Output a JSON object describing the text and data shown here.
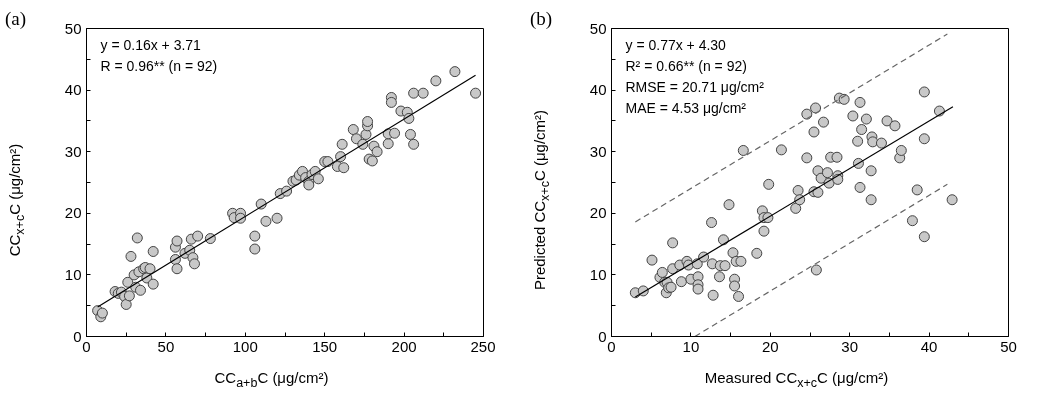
{
  "chart_data": [
    {
      "type": "scatter",
      "title": "(a)",
      "xlabel": "CC$_{a+b}$C (μg/cm²)",
      "ylabel": "CC$_{x+c}$C (μg/cm²)",
      "annotations": [
        "y = 0.16x + 3.71",
        "R = 0.96** (n = 92)"
      ],
      "xlim": [
        0,
        250
      ],
      "ylim": [
        0,
        50
      ],
      "xticks": [
        0,
        {
          "value": 25,
          "label": null
        },
        50,
        {
          "value": 75,
          "label": null
        },
        100,
        {
          "value": 125,
          "label": null
        },
        150,
        {
          "value": 175,
          "label": null
        },
        200,
        {
          "value": 225,
          "label": null
        },
        250
      ],
      "yticks": [
        0,
        {
          "value": 5,
          "label": null
        },
        10,
        {
          "value": 15,
          "label": null
        },
        20,
        {
          "value": 25,
          "label": null
        },
        30,
        {
          "value": 35,
          "label": null
        },
        40,
        {
          "value": 45,
          "label": null
        },
        50
      ],
      "grid": false,
      "series": [
        {
          "marker": "circle",
          "color": "#c8c8c8",
          "x": [
            7,
            9,
            10,
            18,
            20,
            22,
            24,
            25,
            26,
            27,
            28,
            30,
            31,
            32,
            33,
            34,
            36,
            37,
            38,
            40,
            42,
            42,
            56,
            56,
            57,
            57,
            62,
            65,
            66,
            67,
            68,
            70,
            78,
            92,
            93,
            97,
            97,
            106,
            106,
            110,
            113,
            120,
            122,
            126,
            130,
            132,
            134,
            136,
            138,
            140,
            140,
            142,
            144,
            146,
            150,
            152,
            158,
            160,
            161,
            162,
            168,
            170,
            174,
            176,
            177,
            177,
            178,
            180,
            181,
            183,
            190,
            190,
            192,
            192,
            194,
            198,
            202,
            203,
            204,
            206,
            206,
            212,
            220,
            232,
            245
          ],
          "values": [
            4.2,
            3.2,
            3.8,
            7.3,
            7.0,
            7.2,
            6.5,
            5.2,
            8.8,
            6.6,
            13,
            10,
            8,
            16,
            10.5,
            7.5,
            11,
            11.2,
            9.5,
            11,
            13.8,
            8.5,
            12.5,
            14.5,
            15.5,
            11,
            13.5,
            14,
            15.8,
            12.8,
            11.8,
            16.3,
            15.9,
            20,
            19.3,
            20,
            19.2,
            16.3,
            14.2,
            21.5,
            18.7,
            19.2,
            23.2,
            23.6,
            25.2,
            25.4,
            26.2,
            26.8,
            25.8,
            25.2,
            24.6,
            26.3,
            26.8,
            25.6,
            28.4,
            28.4,
            27.6,
            29.2,
            31.2,
            27.4,
            33.6,
            32.1,
            31.2,
            32.8,
            34.2,
            34.9,
            28.8,
            28.5,
            30.9,
            30.0,
            31.3,
            32.9,
            38.8,
            38.0,
            33.0,
            36.6,
            36.4,
            35.4,
            32.8,
            31.2,
            39.5,
            39.5,
            41.5,
            43,
            39.5
          ]
        },
        {
          "type": "line",
          "color": "#000000",
          "line_style": "solid",
          "x": [
            7,
            245
          ],
          "values": [
            4.8,
            42.4
          ]
        }
      ]
    },
    {
      "type": "scatter",
      "title": "(b)",
      "xlabel": "Measured CC$_{x+c}$C (μg/cm²)",
      "ylabel": "Predicted CC$_{x+c}$C (μg/cm²)",
      "annotations": [
        "y = 0.77x + 4.30",
        "R² = 0.66** (n = 92)",
        "RMSE = 20.71 μg/cm²",
        "MAE =  4.53 μg/cm²"
      ],
      "xlim": [
        0,
        50
      ],
      "ylim": [
        0,
        50
      ],
      "xticks": [
        0,
        {
          "value": 5,
          "label": null
        },
        10,
        {
          "value": 15,
          "label": null
        },
        20,
        {
          "value": 25,
          "label": null
        },
        30,
        {
          "value": 35,
          "label": null
        },
        40,
        {
          "value": 45,
          "label": null
        },
        50
      ],
      "yticks": [
        0,
        {
          "value": 5,
          "label": null
        },
        10,
        {
          "value": 15,
          "label": null
        },
        20,
        {
          "value": 25,
          "label": null
        },
        30,
        {
          "value": 35,
          "label": null
        },
        40,
        {
          "value": 45,
          "label": null
        },
        50
      ],
      "grid": false,
      "series": [
        {
          "marker": "circle",
          "color": "#c8c8c8",
          "x": [
            3.0,
            4.0,
            5.1,
            6.1,
            6.4,
            6.7,
            6.9,
            7.0,
            7.2,
            7.5,
            7.7,
            7.7,
            8.6,
            8.8,
            9.5,
            9.7,
            10.0,
            10.8,
            10.9,
            10.9,
            10.9,
            11.6,
            12.6,
            12.7,
            12.8,
            13.6,
            13.7,
            14.3,
            14.1,
            14.8,
            15.3,
            15.5,
            15.5,
            15.7,
            16.0,
            16.3,
            16.6,
            18.3,
            19.0,
            19.2,
            19.2,
            19.7,
            19.8,
            21.4,
            23.2,
            23.5,
            23.7,
            24.6,
            24.6,
            25.5,
            25.7,
            25.5,
            26.0,
            26.0,
            26.4,
            26.7,
            27.2,
            27.4,
            27.6,
            28.4,
            28.5,
            28.5,
            28.7,
            29.3,
            30.4,
            31.0,
            31.1,
            31.3,
            31.3,
            31.5,
            32.1,
            32.7,
            32.7,
            32.8,
            32.9,
            34.0,
            34.7,
            35.7,
            36.3,
            36.5,
            37.9,
            38.5,
            39.4,
            39.4,
            39.4,
            41.3,
            42.9,
            25.8
          ],
          "values": [
            7.1,
            7.4,
            12.4,
            9.6,
            10.4,
            8.8,
            7.1,
            8.8,
            7.9,
            8.0,
            15.2,
            11.0,
            11.6,
            8.9,
            12.2,
            11.6,
            9.3,
            11.8,
            9.7,
            8.4,
            7.7,
            12.9,
            18.5,
            11.8,
            6.7,
            9.7,
            11.5,
            11.5,
            15.7,
            21.4,
            13.6,
            9.3,
            8.2,
            12.2,
            6.5,
            12.2,
            30.2,
            13.5,
            20.4,
            17.1,
            19.3,
            19.3,
            24.7,
            30.3,
            20.8,
            23.7,
            22.2,
            36.1,
            29.0,
            33.2,
            37.1,
            23.5,
            23.4,
            26.9,
            25.7,
            34.8,
            26.6,
            24.9,
            29.1,
            29.1,
            26.1,
            25.5,
            38.7,
            38.5,
            35.8,
            31.7,
            28.1,
            24.2,
            38.0,
            33.6,
            35.3,
            22.2,
            26.9,
            32.4,
            31.6,
            31.4,
            35.0,
            34.2,
            29.0,
            30.2,
            18.8,
            23.8,
            39.7,
            32.1,
            16.2,
            36.6,
            22.2,
            10.8
          ]
        },
        {
          "type": "line",
          "color": "#000000",
          "line_style": "solid",
          "x": [
            3.0,
            43.0
          ],
          "values": [
            6.4,
            37.3
          ]
        },
        {
          "type": "line",
          "color": "#666666",
          "line_style": "dashed",
          "x": [
            3.0,
            42.3
          ],
          "values": [
            18.6,
            49.1
          ]
        },
        {
          "type": "line",
          "color": "#666666",
          "line_style": "dashed",
          "x": [
            10.5,
            42.3
          ],
          "values": [
            0,
            24.7
          ]
        }
      ]
    }
  ]
}
